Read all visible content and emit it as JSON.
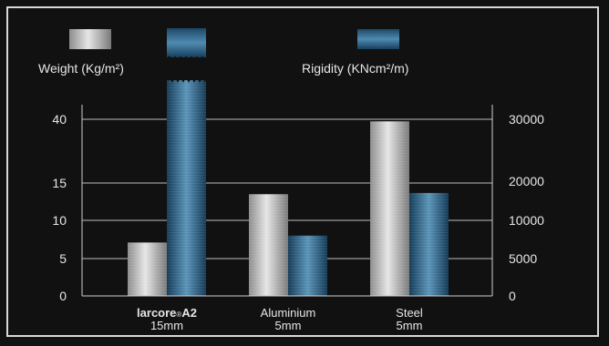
{
  "chart_data": {
    "type": "bar",
    "categories": [
      {
        "name": "larcore",
        "sup": "®",
        "model": "A2",
        "thickness": "15mm"
      },
      {
        "name": "Aluminium",
        "sup": "",
        "model": "",
        "thickness": "5mm"
      },
      {
        "name": "Steel",
        "sup": "",
        "model": "",
        "thickness": "5mm"
      }
    ],
    "series": [
      {
        "name": "Weight (Kg/m²)",
        "axis": "left",
        "values": [
          7.1,
          13.5,
          39.2
        ],
        "color": "#c4c4c4"
      },
      {
        "name": "Rigidity (KNcm²/m)",
        "axis": "right",
        "values": [
          60000,
          8000,
          17000
        ],
        "color": "#2d6a90",
        "broken": [
          true,
          false,
          false
        ]
      }
    ],
    "left_axis": {
      "ticks": [
        0,
        5,
        10,
        15,
        40
      ],
      "tick_labels": [
        "0",
        "5",
        "10",
        "15",
        "40"
      ]
    },
    "right_axis": {
      "ticks": [
        0,
        5000,
        10000,
        20000,
        30000
      ],
      "tick_labels": [
        "0",
        "5000",
        "10000",
        "20000",
        "30000"
      ]
    },
    "legend_placement": "top",
    "grid": true
  }
}
